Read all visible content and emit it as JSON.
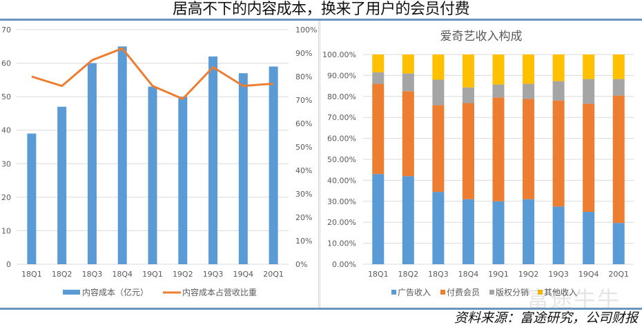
{
  "header": {
    "title": "居高不下的内容成本，换来了用户的会员付费"
  },
  "footer": {
    "source": "资料来源：富途研究，公司财报",
    "watermark": "富途牛牛"
  },
  "colors": {
    "blue": "#5b9bd5",
    "orange": "#ed7d31",
    "gray": "#a5a5a5",
    "yellow": "#ffc000",
    "rule": "#6a94bc"
  },
  "chart_data": [
    {
      "type": "bar",
      "title": "",
      "categories": [
        "18Q1",
        "18Q2",
        "18Q3",
        "18Q4",
        "19Q1",
        "19Q2",
        "19Q3",
        "19Q4",
        "20Q1"
      ],
      "series": [
        {
          "name": "内容成本（亿元）",
          "type": "bar",
          "axis": "left",
          "values": [
            39,
            47,
            60,
            65,
            53,
            50,
            62,
            57,
            59
          ]
        },
        {
          "name": "内容成本占营收比重",
          "type": "line",
          "axis": "right",
          "values": [
            0.8,
            0.76,
            0.87,
            0.92,
            0.76,
            0.705,
            0.84,
            0.76,
            0.77
          ]
        }
      ],
      "y_left": {
        "ylim": [
          0,
          70
        ],
        "ticks": [
          "0",
          "10",
          "20",
          "30",
          "40",
          "50",
          "60",
          "70"
        ]
      },
      "y_right": {
        "ylim": [
          0,
          1
        ],
        "ticks": [
          "0%",
          "10%",
          "20%",
          "30%",
          "40%",
          "50%",
          "60%",
          "70%",
          "80%",
          "90%",
          "100%"
        ]
      },
      "grid": true,
      "legend": "bottom"
    },
    {
      "type": "bar",
      "stacked": true,
      "title": "爱奇艺收入构成",
      "categories": [
        "18Q1",
        "18Q2",
        "18Q3",
        "18Q4",
        "19Q1",
        "19Q2",
        "19Q3",
        "19Q4",
        "20Q1"
      ],
      "series": [
        {
          "name": "广告收入",
          "values": [
            43.0,
            42.0,
            34.5,
            31.0,
            30.0,
            31.0,
            27.5,
            25.0,
            19.7
          ]
        },
        {
          "name": "付费会员",
          "values": [
            43.0,
            40.5,
            41.3,
            45.8,
            49.5,
            47.8,
            50.5,
            51.5,
            60.7
          ]
        },
        {
          "name": "版权分销",
          "values": [
            5.5,
            8.5,
            12.2,
            7.5,
            6.2,
            7.2,
            9.3,
            11.8,
            7.9
          ]
        },
        {
          "name": "其他收入",
          "values": [
            8.5,
            9.0,
            12.0,
            15.7,
            14.3,
            14.0,
            12.7,
            11.7,
            11.7
          ]
        }
      ],
      "ylim": [
        0,
        100
      ],
      "yticks": [
        "0.00%",
        "10.00%",
        "20.00%",
        "30.00%",
        "40.00%",
        "50.00%",
        "60.00%",
        "70.00%",
        "80.00%",
        "90.00%",
        "100.00%"
      ],
      "grid": true,
      "legend": "bottom"
    }
  ]
}
